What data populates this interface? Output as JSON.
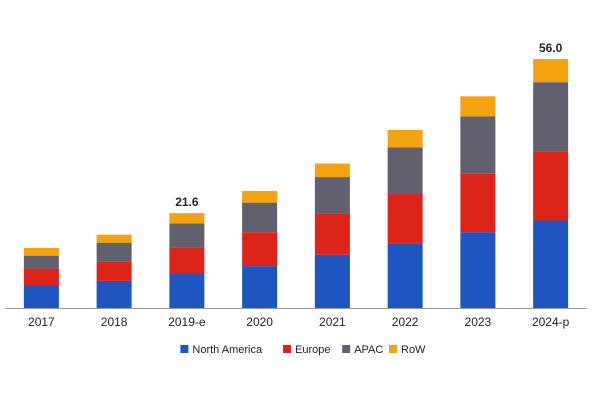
{
  "chart_data": {
    "type": "bar",
    "stacked": true,
    "categories": [
      "2017",
      "2018",
      "2019-e",
      "2020",
      "2021",
      "2022",
      "2023",
      "2024-p"
    ],
    "series": [
      {
        "name": "North America",
        "color": "#1e55c0",
        "values": [
          7.3,
          8.8,
          11.2,
          13.6,
          17.3,
          20.8,
          24.6,
          28.4
        ]
      },
      {
        "name": "Europe",
        "color": "#dd2419",
        "values": [
          5.5,
          6.4,
          8.5,
          11.0,
          13.4,
          16.2,
          19.0,
          22.5
        ]
      },
      {
        "name": "APAC",
        "color": "#61606f",
        "values": [
          4.2,
          6.0,
          7.8,
          9.6,
          11.8,
          15.1,
          18.6,
          22.4
        ]
      },
      {
        "name": "RoW",
        "color": "#f5a210",
        "values": [
          2.5,
          2.6,
          3.3,
          3.8,
          4.4,
          5.7,
          6.5,
          7.5
        ]
      }
    ],
    "data_labels": [
      {
        "category": "2019-e",
        "text": "21.6"
      },
      {
        "category": "2024-p",
        "text": "56.0"
      }
    ],
    "ylim": [
      0,
      87
    ],
    "grid": false,
    "legend_position": "bottom",
    "title": "",
    "xlabel": "",
    "ylabel": ""
  }
}
